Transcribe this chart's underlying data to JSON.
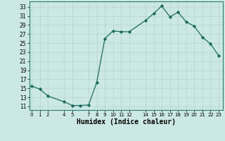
{
  "x": [
    0,
    1,
    2,
    4,
    5,
    6,
    7,
    8,
    9,
    10,
    11,
    12,
    14,
    15,
    16,
    17,
    18,
    19,
    20,
    21,
    22,
    23
  ],
  "y": [
    15.5,
    14.8,
    13.3,
    12.0,
    11.2,
    11.2,
    11.3,
    16.3,
    26.0,
    27.7,
    27.5,
    27.5,
    30.0,
    31.5,
    33.2,
    30.8,
    31.8,
    29.7,
    28.7,
    26.3,
    24.8,
    22.2
  ],
  "line_color": "#1a6b5e",
  "marker": "D",
  "marker_size": 2.2,
  "bg_color": "#cce8e4",
  "grid_color": "#b8d8d4",
  "xlabel": "Humidex (Indice chaleur)",
  "xlabel_fontsize": 7,
  "ytick_min": 11,
  "ytick_max": 33,
  "ytick_step": 2,
  "xticks": [
    0,
    1,
    2,
    4,
    5,
    7,
    8,
    9,
    10,
    11,
    12,
    14,
    15,
    16,
    17,
    18,
    19,
    20,
    21,
    22,
    23
  ],
  "xlim": [
    -0.3,
    23.5
  ],
  "ylim": [
    10.2,
    34.2
  ]
}
